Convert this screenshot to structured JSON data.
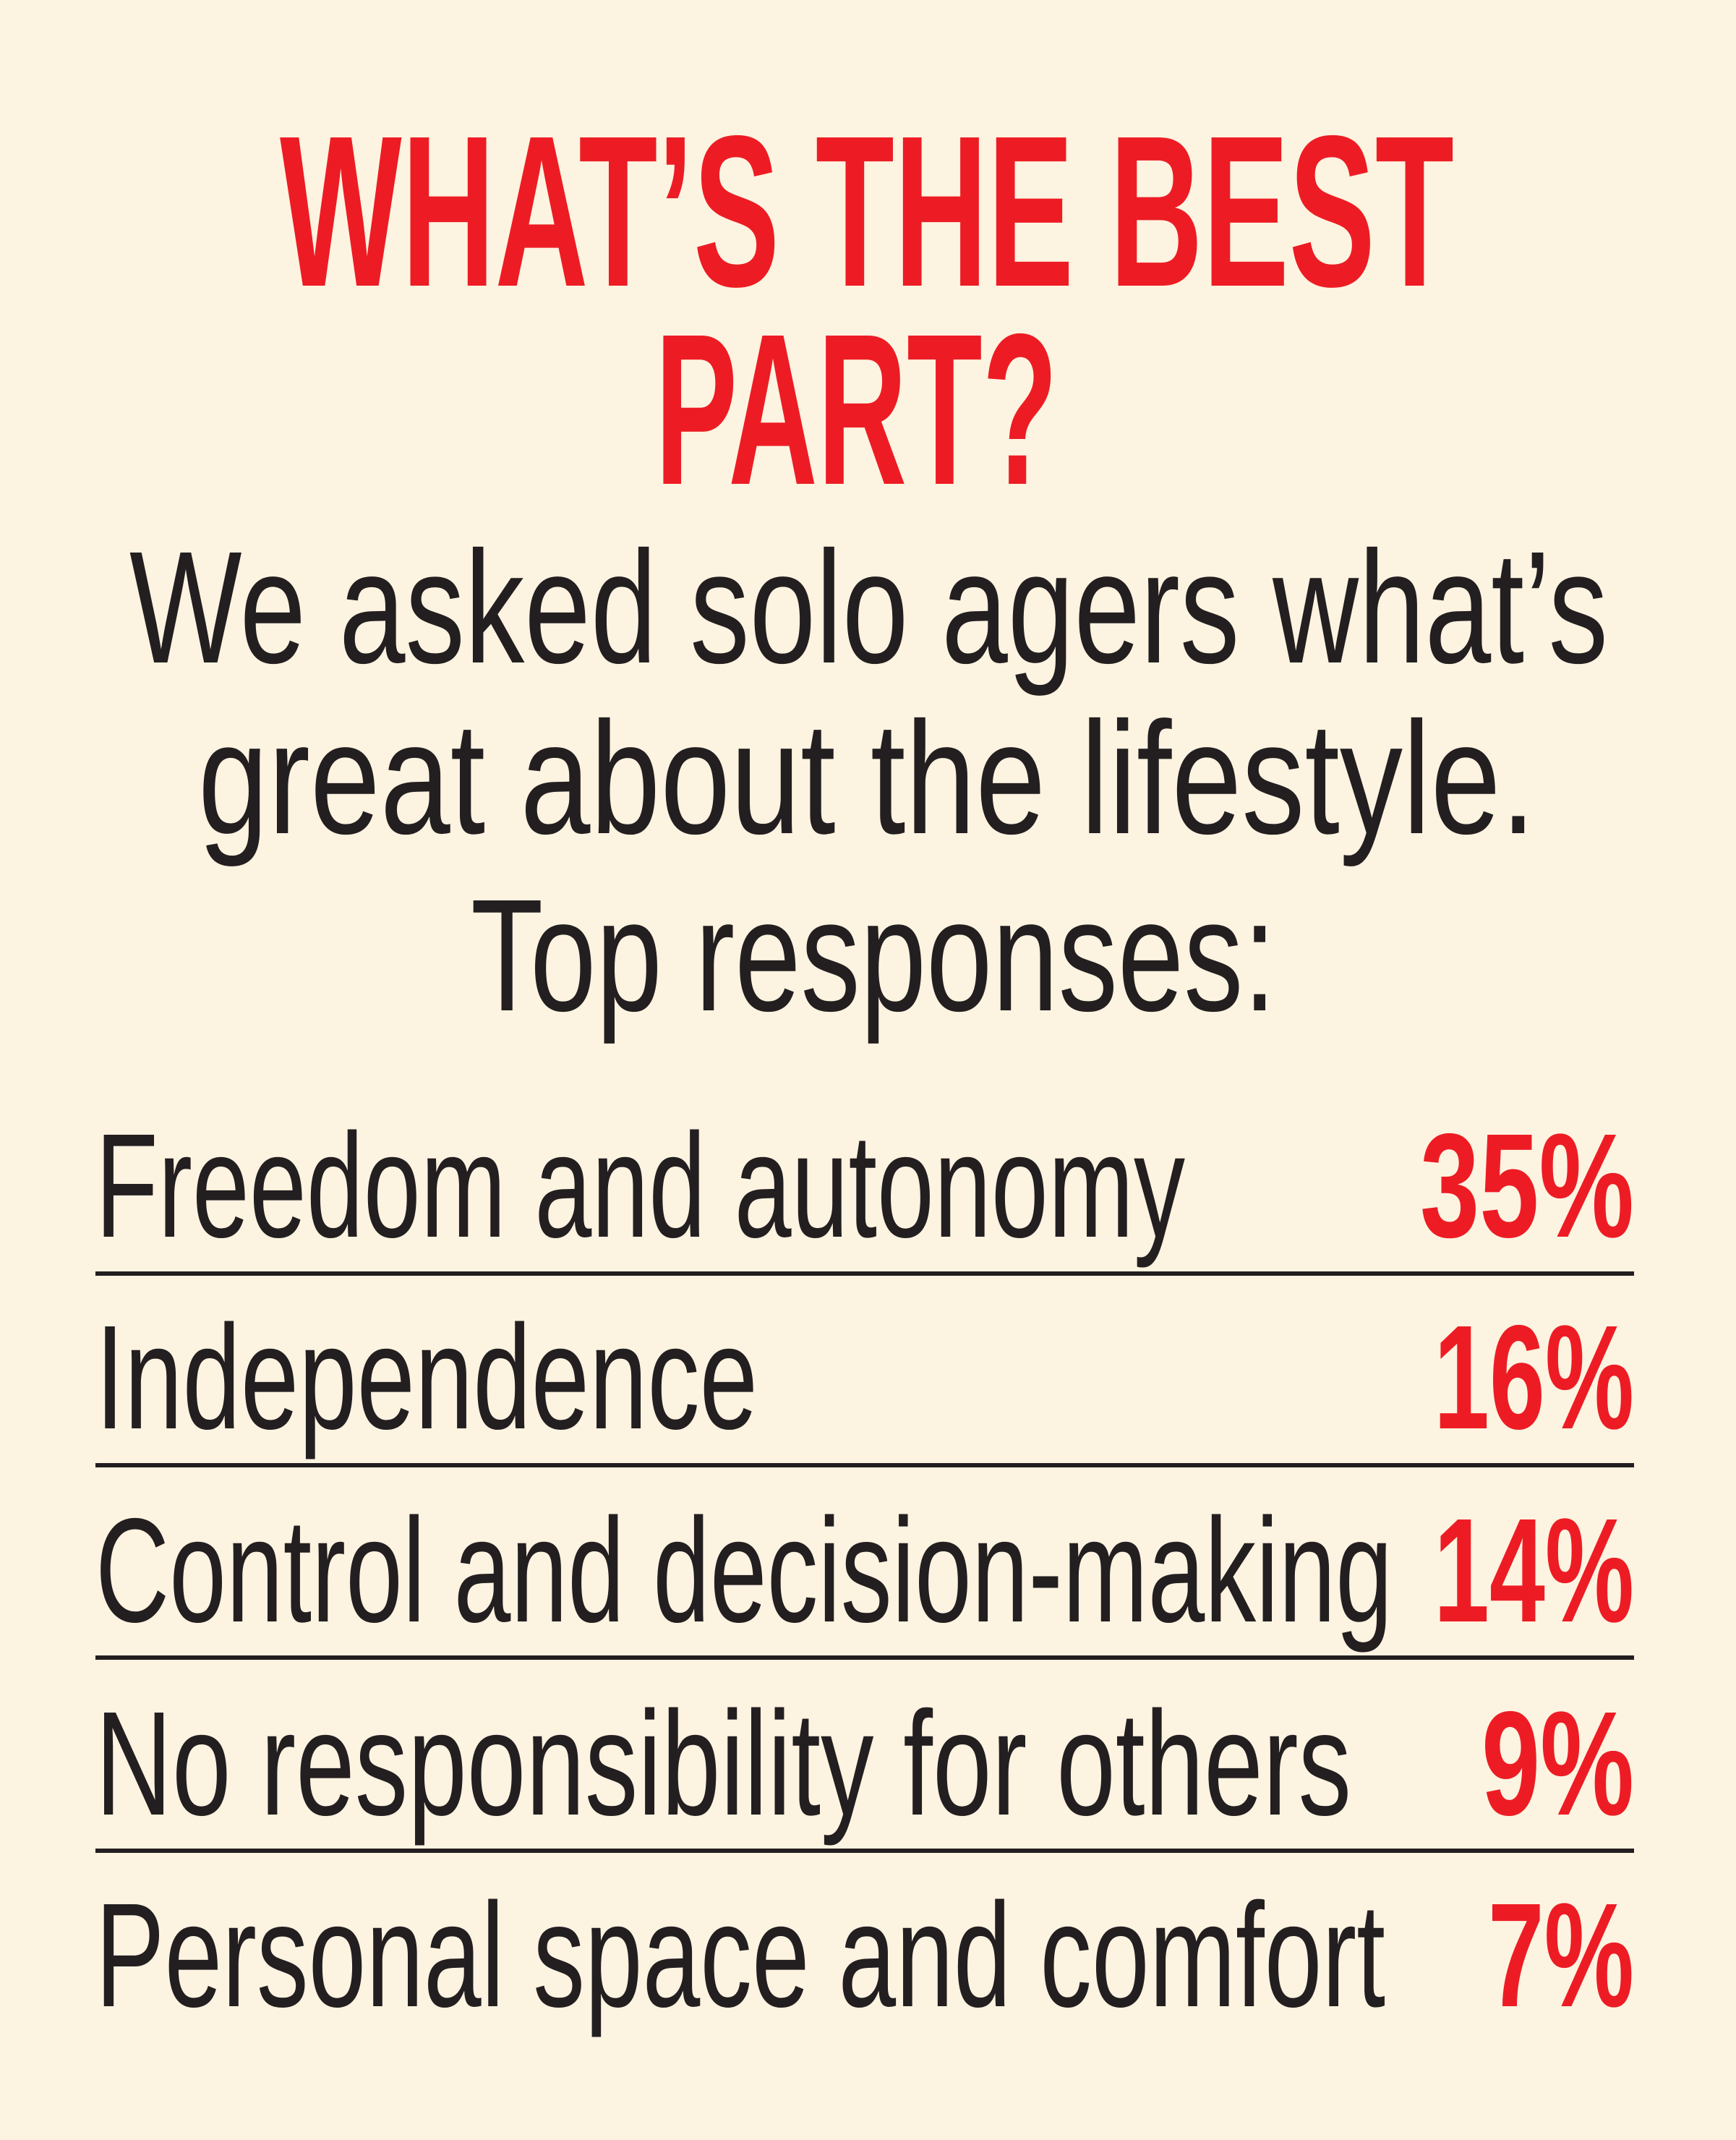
{
  "colors": {
    "background": "#fdf3e1",
    "accent": "#ed1c24",
    "text": "#231f20"
  },
  "title": {
    "line1": "WHAT’S THE BEST",
    "line2": "PART?"
  },
  "subtitle": {
    "line1": "We asked solo agers what’s",
    "line2": "great about the lifestyle.",
    "line3": "Top responses:"
  },
  "responses": [
    {
      "label": "Freedom and autonomy",
      "percent": "35%"
    },
    {
      "label": "Independence",
      "percent": "16%"
    },
    {
      "label": "Control and decision-making",
      "percent": "14%"
    },
    {
      "label": "No responsibility for others",
      "percent": "9%"
    },
    {
      "label": "Personal space and comfort",
      "percent": "7%"
    }
  ]
}
